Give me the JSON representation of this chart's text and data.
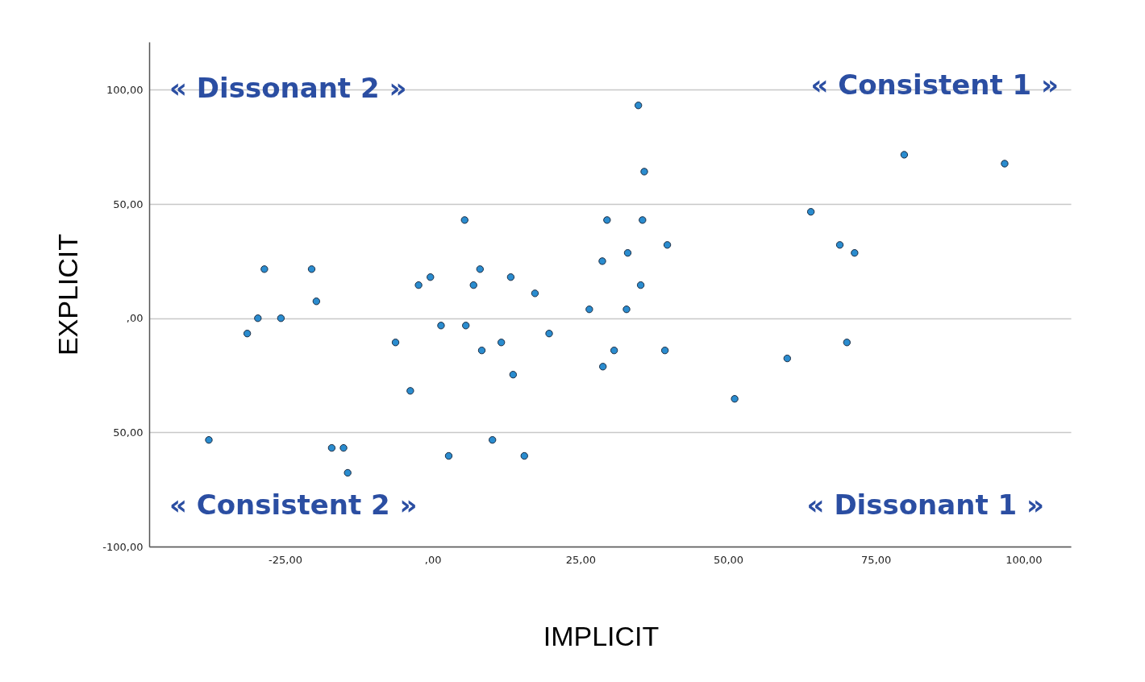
{
  "chart_data": {
    "type": "scatter",
    "xlabel": "IMPLICIT",
    "ylabel": "EXPLICIT",
    "xlim": [
      -48,
      108
    ],
    "ylim": [
      -100,
      121
    ],
    "xticks": [
      {
        "value": -25,
        "label": "-25,00"
      },
      {
        "value": 0,
        "label": ",00"
      },
      {
        "value": 25,
        "label": "25,00"
      },
      {
        "value": 50,
        "label": "50,00"
      },
      {
        "value": 75,
        "label": "75,00"
      },
      {
        "value": 100,
        "label": "100,00"
      }
    ],
    "yticks": [
      {
        "value": -100,
        "label": "-100,00"
      },
      {
        "value": -50,
        "label": "50,00"
      },
      {
        "value": 0,
        "label": ",00"
      },
      {
        "value": 50,
        "label": "50,00"
      },
      {
        "value": 100,
        "label": "100,00"
      }
    ],
    "grid": "y",
    "marker": "circle",
    "annotations": [
      "« Dissonant 2 »",
      "« Consistent 1 »",
      "« Consistent 2 »",
      "« Dissonant 1 »"
    ],
    "series": [
      {
        "color": "#2a8ccf",
        "x": [
          -37.9,
          -31.4,
          -29.6,
          -28.5,
          -25.7,
          -20.5,
          -19.7,
          -17.1,
          -15.1,
          -14.4,
          -6.3,
          -3.8,
          -2.4,
          -0.4,
          1.4,
          2.7,
          5.4,
          5.6,
          6.9,
          8.0,
          8.3,
          10.1,
          11.6,
          13.2,
          13.6,
          15.5,
          17.3,
          19.7,
          26.5,
          28.7,
          28.8,
          29.5,
          30.7,
          33.0,
          32.8,
          34.8,
          35.2,
          35.5,
          35.8,
          39.3,
          39.7,
          51.1,
          60.0,
          64.0,
          68.9,
          70.1,
          71.4,
          79.8,
          96.8
        ],
        "values": [
          -53.3,
          -6.7,
          0,
          21.5,
          0,
          21.5,
          7.4,
          -56.8,
          -56.8,
          -67.7,
          -10.6,
          -31.8,
          14.5,
          18,
          -3.2,
          -60.3,
          43,
          -3.2,
          14.5,
          21.5,
          -14.1,
          -53.3,
          -10.6,
          18,
          -24.7,
          -60.3,
          10.9,
          -6.7,
          3.9,
          25,
          -21.2,
          43,
          -14.1,
          28.6,
          3.9,
          93.2,
          14.5,
          43,
          64.2,
          -14.1,
          32.1,
          -35.3,
          -17.6,
          46.6,
          32.1,
          -10.6,
          28.6,
          71.6,
          67.7
        ]
      }
    ]
  }
}
